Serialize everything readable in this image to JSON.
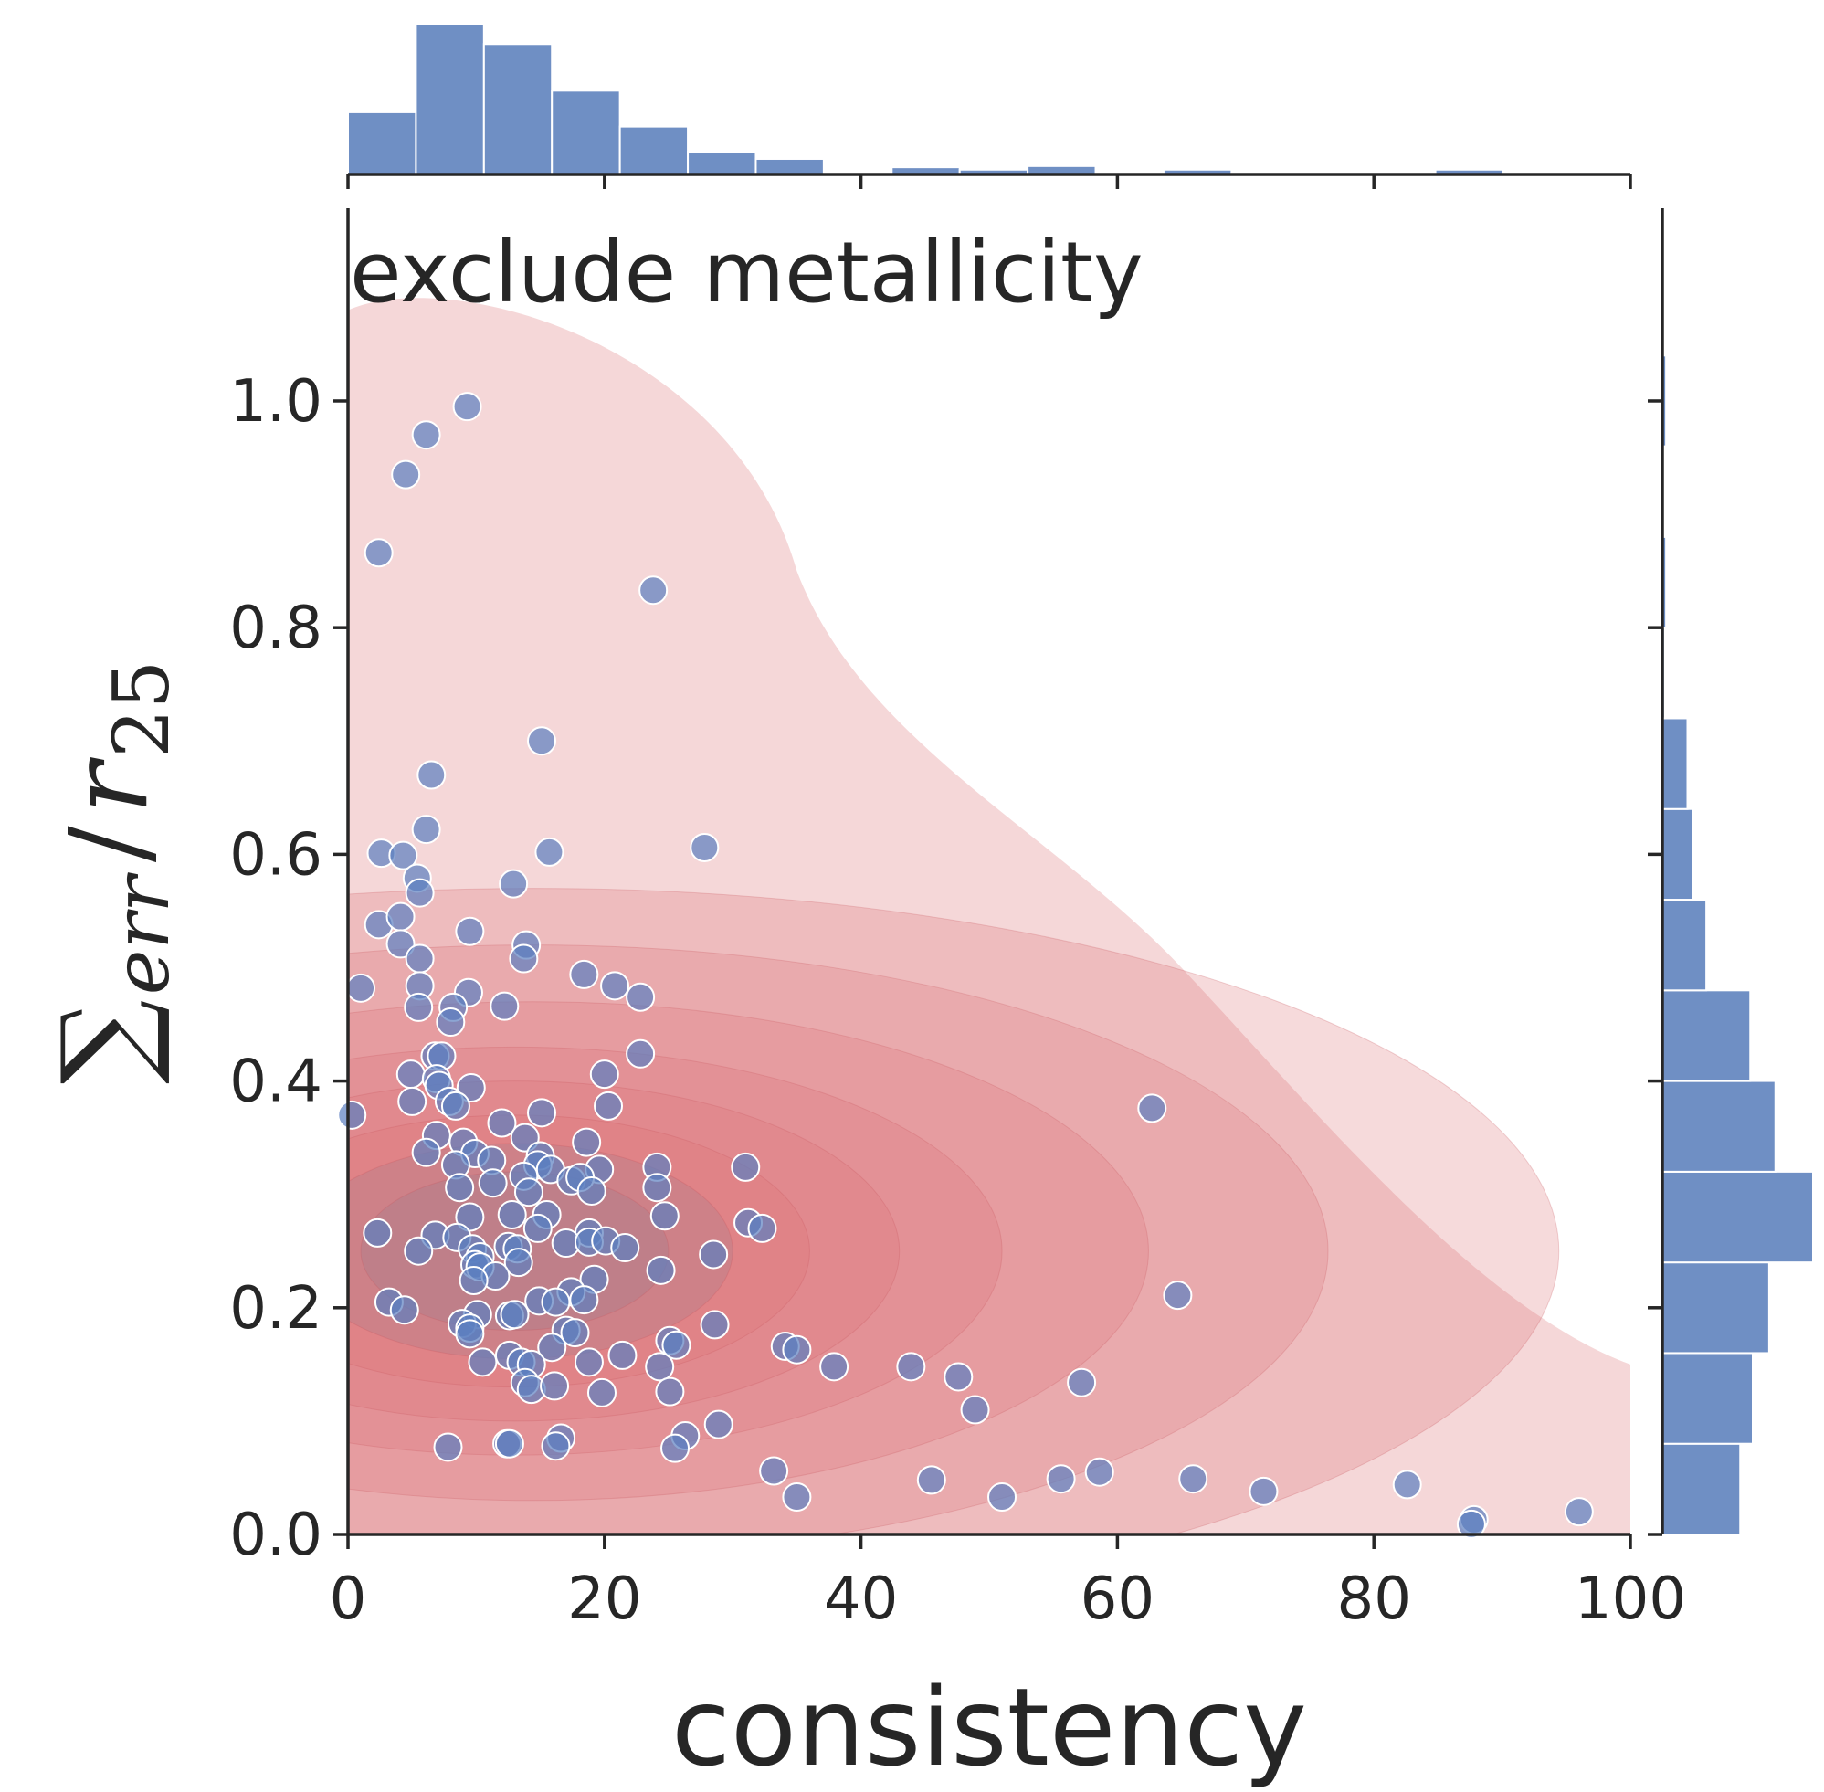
{
  "chart_data": {
    "type": "scatter",
    "annotation": "exclude metallicity",
    "xlabel": "consistency",
    "ylabel": {
      "sigma": "∑",
      "subscript": "err",
      "slash": "/",
      "r": "r",
      "r_subscript": "25"
    },
    "xlim": [
      0,
      100
    ],
    "ylim": [
      0,
      1.17
    ],
    "xticks": [
      0,
      20,
      40,
      60,
      80,
      100
    ],
    "xtick_labels": [
      "0",
      "20",
      "40",
      "60",
      "80",
      "100"
    ],
    "yticks": [
      0.0,
      0.2,
      0.4,
      0.6,
      0.8,
      1.0
    ],
    "ytick_labels": [
      "0.0",
      "0.2",
      "0.4",
      "0.6",
      "0.8",
      "1.0"
    ],
    "grid": false,
    "colors": {
      "points": "#5b7fc0",
      "point_edge": "#ffffff",
      "hist": "#6f8fc4",
      "kde": "#dc6f72"
    },
    "kde_center": [
      13,
      0.25
    ],
    "points": [
      [
        9.3,
        0.995
      ],
      [
        6.1,
        0.97
      ],
      [
        4.5,
        0.935
      ],
      [
        2.4,
        0.866
      ],
      [
        23.8,
        0.833
      ],
      [
        15.1,
        0.7
      ],
      [
        6.5,
        0.67
      ],
      [
        27.8,
        0.606
      ],
      [
        6.1,
        0.622
      ],
      [
        2.6,
        0.601
      ],
      [
        4.3,
        0.599
      ],
      [
        15.7,
        0.602
      ],
      [
        5.4,
        0.579
      ],
      [
        12.9,
        0.574
      ],
      [
        5.6,
        0.566
      ],
      [
        2.4,
        0.538
      ],
      [
        4.1,
        0.545
      ],
      [
        9.5,
        0.532
      ],
      [
        4.1,
        0.521
      ],
      [
        13.9,
        0.52
      ],
      [
        5.6,
        0.508
      ],
      [
        13.7,
        0.508
      ],
      [
        1.0,
        0.482
      ],
      [
        5.6,
        0.484
      ],
      [
        9.4,
        0.478
      ],
      [
        18.4,
        0.494
      ],
      [
        20.8,
        0.484
      ],
      [
        22.8,
        0.474
      ],
      [
        5.5,
        0.465
      ],
      [
        12.2,
        0.466
      ],
      [
        8.2,
        0.465
      ],
      [
        8.0,
        0.452
      ],
      [
        6.8,
        0.422
      ],
      [
        7.3,
        0.422
      ],
      [
        22.8,
        0.424
      ],
      [
        4.9,
        0.406
      ],
      [
        6.9,
        0.402
      ],
      [
        7.1,
        0.396
      ],
      [
        9.6,
        0.394
      ],
      [
        20.0,
        0.406
      ],
      [
        0.3,
        0.37
      ],
      [
        5.0,
        0.382
      ],
      [
        7.9,
        0.382
      ],
      [
        8.4,
        0.378
      ],
      [
        20.3,
        0.378
      ],
      [
        15.1,
        0.372
      ],
      [
        12.0,
        0.363
      ],
      [
        6.9,
        0.352
      ],
      [
        13.8,
        0.35
      ],
      [
        18.6,
        0.346
      ],
      [
        9.0,
        0.346
      ],
      [
        6.1,
        0.337
      ],
      [
        9.9,
        0.336
      ],
      [
        15.0,
        0.334
      ],
      [
        14.8,
        0.326
      ],
      [
        8.4,
        0.326
      ],
      [
        11.2,
        0.33
      ],
      [
        15.8,
        0.322
      ],
      [
        19.6,
        0.322
      ],
      [
        24.1,
        0.324
      ],
      [
        31.0,
        0.324
      ],
      [
        13.7,
        0.316
      ],
      [
        17.4,
        0.312
      ],
      [
        18.1,
        0.315
      ],
      [
        24.1,
        0.306
      ],
      [
        8.7,
        0.306
      ],
      [
        11.3,
        0.31
      ],
      [
        14.1,
        0.302
      ],
      [
        19.0,
        0.303
      ],
      [
        12.8,
        0.282
      ],
      [
        15.5,
        0.282
      ],
      [
        9.5,
        0.28
      ],
      [
        24.7,
        0.281
      ],
      [
        2.3,
        0.266
      ],
      [
        6.8,
        0.264
      ],
      [
        8.5,
        0.262
      ],
      [
        14.8,
        0.27
      ],
      [
        18.8,
        0.266
      ],
      [
        31.2,
        0.275
      ],
      [
        32.3,
        0.27
      ],
      [
        17.0,
        0.257
      ],
      [
        18.8,
        0.258
      ],
      [
        20.1,
        0.259
      ],
      [
        21.6,
        0.253
      ],
      [
        5.5,
        0.25
      ],
      [
        9.7,
        0.252
      ],
      [
        10.3,
        0.245
      ],
      [
        12.5,
        0.254
      ],
      [
        13.2,
        0.252
      ],
      [
        28.5,
        0.247
      ],
      [
        9.9,
        0.238
      ],
      [
        10.3,
        0.236
      ],
      [
        13.3,
        0.24
      ],
      [
        24.4,
        0.233
      ],
      [
        11.5,
        0.228
      ],
      [
        9.8,
        0.224
      ],
      [
        19.2,
        0.225
      ],
      [
        17.4,
        0.214
      ],
      [
        3.2,
        0.205
      ],
      [
        4.4,
        0.198
      ],
      [
        14.9,
        0.206
      ],
      [
        16.2,
        0.205
      ],
      [
        18.4,
        0.207
      ],
      [
        10.1,
        0.194
      ],
      [
        12.6,
        0.193
      ],
      [
        13.0,
        0.194
      ],
      [
        8.9,
        0.186
      ],
      [
        9.5,
        0.182
      ],
      [
        9.5,
        0.177
      ],
      [
        17.0,
        0.18
      ],
      [
        17.7,
        0.178
      ],
      [
        28.6,
        0.185
      ],
      [
        25.1,
        0.171
      ],
      [
        25.6,
        0.167
      ],
      [
        34.1,
        0.166
      ],
      [
        35.0,
        0.163
      ],
      [
        15.9,
        0.165
      ],
      [
        12.6,
        0.158
      ],
      [
        21.4,
        0.158
      ],
      [
        10.5,
        0.152
      ],
      [
        13.5,
        0.152
      ],
      [
        14.3,
        0.15
      ],
      [
        18.8,
        0.152
      ],
      [
        24.3,
        0.148
      ],
      [
        37.9,
        0.148
      ],
      [
        43.9,
        0.148
      ],
      [
        47.6,
        0.139
      ],
      [
        57.2,
        0.134
      ],
      [
        13.8,
        0.134
      ],
      [
        14.3,
        0.128
      ],
      [
        16.1,
        0.131
      ],
      [
        19.8,
        0.125
      ],
      [
        25.1,
        0.126
      ],
      [
        48.9,
        0.11
      ],
      [
        62.7,
        0.376
      ],
      [
        64.7,
        0.211
      ],
      [
        28.9,
        0.097
      ],
      [
        26.3,
        0.087
      ],
      [
        25.5,
        0.076
      ],
      [
        16.6,
        0.085
      ],
      [
        16.2,
        0.078
      ],
      [
        12.4,
        0.08
      ],
      [
        12.6,
        0.08
      ],
      [
        7.8,
        0.077
      ],
      [
        33.2,
        0.056
      ],
      [
        35.0,
        0.033
      ],
      [
        45.5,
        0.048
      ],
      [
        51.0,
        0.033
      ],
      [
        55.6,
        0.049
      ],
      [
        58.6,
        0.055
      ],
      [
        65.9,
        0.049
      ],
      [
        71.4,
        0.038
      ],
      [
        82.6,
        0.044
      ],
      [
        87.8,
        0.013
      ],
      [
        87.6,
        0.009
      ],
      [
        96.0,
        0.02
      ]
    ],
    "top_hist": {
      "bins": [
        0,
        5.3,
        10.6,
        15.9,
        21.2,
        26.5,
        31.8,
        37.1,
        42.4,
        47.7,
        53.0,
        58.3,
        63.6,
        68.9,
        74.2,
        79.5,
        84.8,
        90.1,
        95.4
      ],
      "counts": [
        52,
        126,
        109,
        70,
        40,
        19,
        13,
        0,
        6,
        4,
        7,
        0,
        4,
        1,
        1,
        0,
        4,
        1
      ]
    },
    "right_hist": {
      "bins": [
        0.0,
        0.08,
        0.16,
        0.24,
        0.32,
        0.4,
        0.48,
        0.56,
        0.64,
        0.72,
        0.8,
        0.88,
        0.96,
        1.04
      ],
      "counts": [
        62,
        72,
        85,
        120,
        90,
        70,
        35,
        24,
        20,
        2,
        3,
        0,
        3,
        0
      ]
    }
  }
}
